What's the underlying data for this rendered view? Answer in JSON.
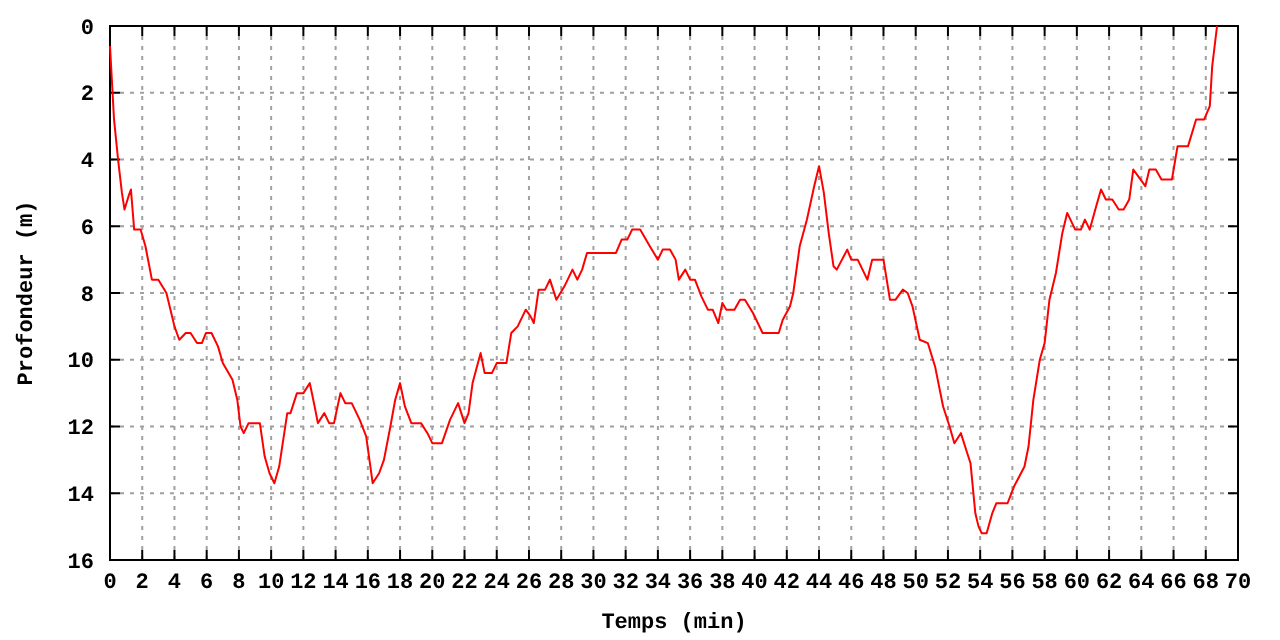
{
  "chart_data": {
    "type": "line",
    "xlabel": "Temps (min)",
    "ylabel": "Profondeur (m)",
    "xlim": [
      0,
      70
    ],
    "xticks": [
      0,
      2,
      4,
      6,
      8,
      10,
      12,
      14,
      16,
      18,
      20,
      22,
      24,
      26,
      28,
      30,
      32,
      34,
      36,
      38,
      40,
      42,
      44,
      46,
      48,
      50,
      52,
      54,
      56,
      58,
      60,
      62,
      64,
      66,
      68,
      70
    ],
    "ylim": [
      16,
      0
    ],
    "yticks": [
      0,
      2,
      4,
      6,
      8,
      10,
      12,
      14,
      16
    ],
    "grid": true,
    "marker": "none",
    "line_style": "solid",
    "series": [
      {
        "color": "#ff0000",
        "x": [
          0,
          0.25,
          0.5,
          0.74,
          0.9,
          1.15,
          1.3,
          1.5,
          1.9,
          2.2,
          2.6,
          3,
          3.5,
          3.7,
          4,
          4.3,
          4.7,
          5,
          5.4,
          5.7,
          5.95,
          6.3,
          6.7,
          7,
          7.6,
          7.9,
          8.1,
          8.3,
          8.6,
          9.3,
          9.6,
          9.9,
          10.2,
          10.5,
          11,
          11.2,
          11.6,
          12,
          12.4,
          12.7,
          12.9,
          13.3,
          13.6,
          13.9,
          14.3,
          14.6,
          15,
          15.5,
          15.9,
          16.3,
          16.7,
          17,
          17.4,
          17.7,
          18,
          18.3,
          18.7,
          19.3,
          19.7,
          20,
          20.6,
          21.1,
          21.6,
          22,
          22.25,
          22.5,
          23,
          23.25,
          23.7,
          24,
          24.6,
          24.9,
          25.3,
          25.8,
          26.1,
          26.3,
          26.6,
          27,
          27.3,
          27.7,
          28.2,
          28.7,
          29,
          29.3,
          29.6,
          31.4,
          31.75,
          32.1,
          32.4,
          32.9,
          33.5,
          34,
          34.3,
          34.75,
          35.1,
          35.3,
          35.7,
          36,
          36.3,
          36.7,
          37.1,
          37.4,
          37.75,
          38,
          38.25,
          38.75,
          39.1,
          39.4,
          39.9,
          40.5,
          41.5,
          41.75,
          42.2,
          42.4,
          42.8,
          43.25,
          43.7,
          44,
          44.3,
          44.6,
          44.9,
          45.1,
          45.75,
          46,
          46.4,
          47,
          47.3,
          48,
          48.4,
          48.75,
          49.2,
          49.5,
          49.8,
          50.25,
          50.75,
          51.2,
          51.7,
          52.1,
          52.4,
          52.8,
          53.2,
          53.4,
          53.7,
          53.9,
          54.1,
          54.4,
          54.75,
          55,
          55.7,
          56.1,
          56.75,
          57,
          57.3,
          57.7,
          58,
          58.3,
          58.7,
          59.1,
          59.4,
          59.9,
          60.25,
          60.5,
          60.8,
          61.2,
          61.5,
          61.8,
          62.2,
          62.6,
          62.9,
          63.25,
          63.5,
          63.8,
          64.25,
          64.5,
          64.9,
          65.25,
          65.9,
          66.25,
          66.9,
          67.4,
          67.9,
          68.25,
          68.4,
          68.7
        ],
        "values": [
          0.6,
          2.8,
          4.0,
          5.0,
          5.5,
          5.1,
          4.9,
          6.1,
          6.1,
          6.6,
          7.6,
          7.6,
          8.0,
          8.4,
          9.0,
          9.4,
          9.2,
          9.2,
          9.5,
          9.5,
          9.2,
          9.2,
          9.6,
          10.1,
          10.6,
          11.2,
          12.0,
          12.2,
          11.9,
          11.9,
          12.9,
          13.4,
          13.7,
          13.2,
          11.6,
          11.6,
          11.0,
          11.0,
          10.7,
          11.4,
          11.9,
          11.6,
          11.9,
          11.9,
          11.0,
          11.3,
          11.3,
          11.8,
          12.3,
          13.7,
          13.4,
          13.0,
          12.0,
          11.2,
          10.7,
          11.4,
          11.9,
          11.9,
          12.2,
          12.5,
          12.5,
          11.8,
          11.3,
          11.9,
          11.6,
          10.7,
          9.8,
          10.4,
          10.4,
          10.1,
          10.1,
          9.2,
          9.0,
          8.5,
          8.7,
          8.9,
          7.9,
          7.9,
          7.6,
          8.2,
          7.8,
          7.3,
          7.6,
          7.3,
          6.8,
          6.8,
          6.4,
          6.4,
          6.1,
          6.1,
          6.6,
          7.0,
          6.7,
          6.7,
          7.0,
          7.6,
          7.3,
          7.6,
          7.6,
          8.1,
          8.5,
          8.5,
          8.9,
          8.3,
          8.5,
          8.5,
          8.2,
          8.2,
          8.6,
          9.2,
          9.2,
          8.8,
          8.4,
          8.0,
          6.6,
          5.8,
          4.8,
          4.2,
          5.0,
          6.2,
          7.2,
          7.3,
          6.7,
          7.0,
          7.0,
          7.6,
          7.0,
          7.0,
          8.2,
          8.2,
          7.9,
          8.0,
          8.4,
          9.4,
          9.5,
          10.2,
          11.4,
          12.0,
          12.5,
          12.2,
          12.8,
          13.1,
          14.6,
          15.0,
          15.2,
          15.2,
          14.6,
          14.3,
          14.3,
          13.8,
          13.2,
          12.6,
          11.2,
          10.0,
          9.5,
          8.2,
          7.4,
          6.2,
          5.6,
          6.1,
          6.1,
          5.8,
          6.1,
          5.4,
          4.9,
          5.2,
          5.2,
          5.5,
          5.5,
          5.2,
          4.3,
          4.5,
          4.8,
          4.3,
          4.3,
          4.6,
          4.6,
          3.6,
          3.6,
          2.8,
          2.8,
          2.4,
          1.2,
          0
        ]
      }
    ]
  }
}
